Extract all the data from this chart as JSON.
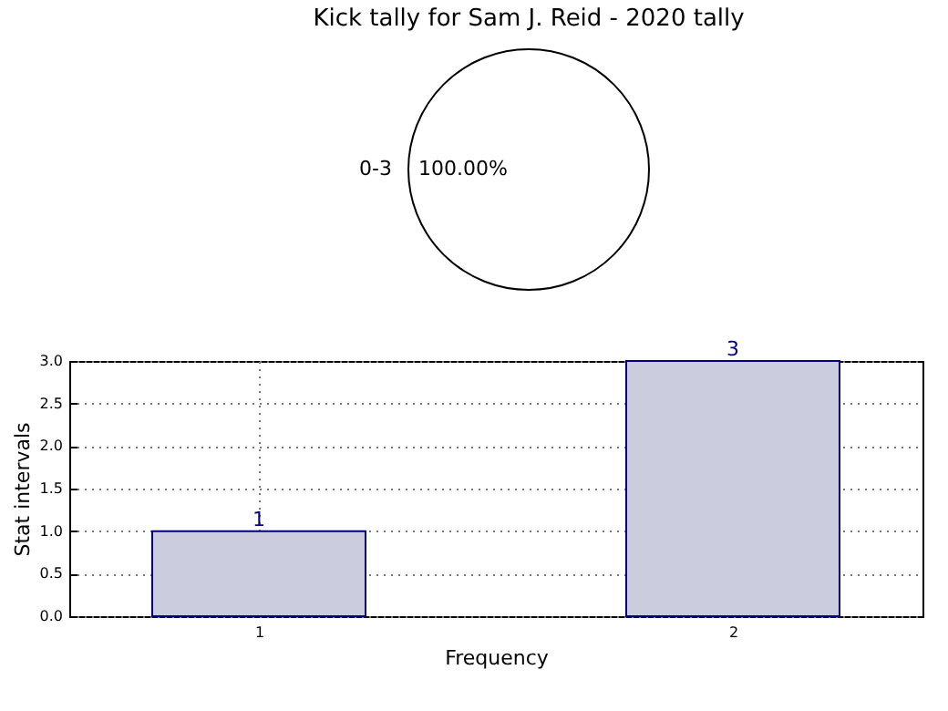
{
  "chart_data": [
    {
      "type": "pie",
      "title": "Kick tally for Sam J. Reid - 2020 tally",
      "categories": [
        "0-3"
      ],
      "values": [
        100
      ],
      "colors": [
        "#ffffff"
      ],
      "value_labels": [
        "100.00%"
      ],
      "legend": false
    },
    {
      "type": "bar",
      "x": [
        1,
        2
      ],
      "values": [
        1,
        3
      ],
      "color": "#ccccdf",
      "xlim": [
        0.6,
        2.4
      ],
      "xticks": [
        1,
        2
      ],
      "ylim": [
        0,
        3
      ],
      "yticks": [
        {
          "value": 0,
          "label": "0.0"
        },
        {
          "value": 0.5,
          "label": "0.5"
        },
        {
          "value": 1,
          "label": "1.0"
        },
        {
          "value": 1.5,
          "label": "1.5"
        },
        {
          "value": 2,
          "label": "2.0"
        },
        {
          "value": 2.5,
          "label": "2.5"
        },
        {
          "value": 3,
          "label": "3.0"
        }
      ],
      "grid": true,
      "data_labels": true,
      "xlabel": "Frequency",
      "ylabel": "Stat intervals"
    }
  ]
}
